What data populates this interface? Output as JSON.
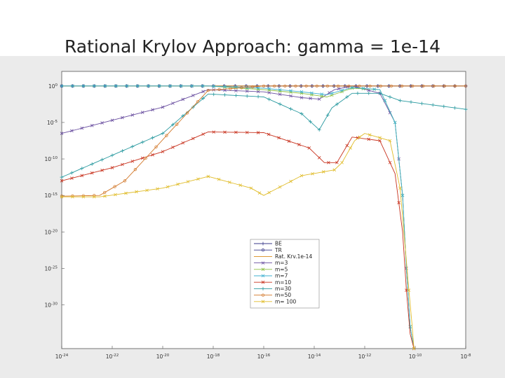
{
  "slide_title": "Rational Krylov Approach: gamma = 1e-14",
  "chart_data": {
    "type": "line",
    "title": "Rational Krylov Approach: gamma = 1e-14",
    "x_scale": "log",
    "y_scale": "log",
    "xlim": [
      1e-24,
      1e-08
    ],
    "ylim": [
      1e-36,
      100.0
    ],
    "x_ticks": [
      -24,
      -22,
      -20,
      -18,
      -16,
      -14,
      -12,
      -10,
      -8
    ],
    "x_tick_labels": [
      "10^-24",
      "10^-22",
      "10^-20",
      "10^-18",
      "10^-16",
      "10^-14",
      "10^-12",
      "10^-10",
      "10^-8"
    ],
    "y_ticks": [
      0,
      -5,
      -10,
      -15,
      -20,
      -25,
      -30
    ],
    "y_tick_labels": [
      "10^0",
      "10^-5",
      "10^-10",
      "10^-15",
      "10^-20",
      "10^-25",
      "10^-30"
    ],
    "legend_position": "center",
    "series": [
      {
        "name": "BE",
        "color": "#3a3a8a",
        "marker": "plus",
        "x": [
          -24,
          -18,
          -8
        ],
        "y": [
          0,
          0,
          0
        ]
      },
      {
        "name": "TR",
        "color": "#3a3a8a",
        "marker": "circle",
        "x": [
          -24,
          -18,
          -8
        ],
        "y": [
          0,
          0,
          0
        ]
      },
      {
        "name": "Rat. Krv.1e-14",
        "color": "#d98c1a",
        "marker": "none",
        "x": [
          -24,
          -18,
          -8
        ],
        "y": [
          0,
          0,
          0
        ]
      },
      {
        "name": "m=3",
        "color": "#6a4fa0",
        "marker": "x",
        "x": [
          -24,
          -22,
          -20,
          -18.2,
          -16,
          -14.5,
          -13.8,
          -13.2,
          -12.5,
          -11.4,
          -10.8,
          -10.5,
          -10.35,
          -10.2,
          -10.05
        ],
        "y": [
          -6.5,
          -4.7,
          -2.9,
          -0.5,
          -0.8,
          -1.6,
          -1.8,
          -0.5,
          0,
          -1,
          -5,
          -15,
          -25,
          -33,
          -36
        ]
      },
      {
        "name": "m=5",
        "color": "#8cbf40",
        "marker": "x",
        "x": [
          -24,
          -18.2,
          -16,
          -14.5,
          -13.5,
          -12.5,
          -11.4,
          -10.8,
          -10.5,
          -10.35,
          -10.2,
          -10.05
        ],
        "y": [
          0,
          0,
          -0.5,
          -1,
          -1.5,
          -0.3,
          -0.5,
          -5,
          -15,
          -25,
          -33,
          -36
        ]
      },
      {
        "name": "m=7",
        "color": "#3fb0d0",
        "marker": "x",
        "x": [
          -24,
          -18.2,
          -16,
          -14.5,
          -13.5,
          -12.5,
          -11.4,
          -10.8,
          -10.5,
          -10.35,
          -10.2,
          -10.05
        ],
        "y": [
          0,
          0,
          -0.3,
          -0.8,
          -1.2,
          -0.2,
          -0.5,
          -5,
          -15,
          -25,
          -33,
          -36
        ]
      },
      {
        "name": "m=10",
        "color": "#c8321e",
        "marker": "x",
        "x": [
          -24,
          -22,
          -20,
          -18.2,
          -16,
          -14.2,
          -13.6,
          -13.1,
          -12.5,
          -11.4,
          -10.8,
          -10.5,
          -10.35,
          -10.2,
          -10.05
        ],
        "y": [
          -13,
          -11.2,
          -9,
          -6.3,
          -6.4,
          -8.5,
          -10.5,
          -10.5,
          -7,
          -7.5,
          -12,
          -20,
          -28,
          -34,
          -36
        ]
      },
      {
        "name": "m=30",
        "color": "#2a9aa0",
        "marker": "plus",
        "x": [
          -24,
          -22,
          -20,
          -18.2,
          -16,
          -14.5,
          -13.8,
          -13.3,
          -12.5,
          -11.4,
          -10.6,
          -8
        ],
        "y": [
          -12.5,
          -9.5,
          -6.5,
          -1.1,
          -1.5,
          -3.8,
          -6,
          -3,
          -1,
          -1,
          -2,
          -3.2
        ]
      },
      {
        "name": "m=50",
        "color": "#d2782a",
        "marker": "circle",
        "x": [
          -24,
          -22.5,
          -21.5,
          -18.2,
          -16,
          -12,
          -8
        ],
        "y": [
          -15.1,
          -15,
          -13,
          -0.6,
          0,
          0,
          0
        ]
      },
      {
        "name": "m= 100",
        "color": "#e0bc2a",
        "marker": "x",
        "x": [
          -24,
          -22.5,
          -20,
          -18.2,
          -16.5,
          -16,
          -14.5,
          -13.2,
          -12.9,
          -12.4,
          -12,
          -11,
          -10.6,
          -10.4,
          -10.25,
          -10.12,
          -10.05
        ],
        "y": [
          -15.2,
          -15.2,
          -14,
          -12.4,
          -14,
          -15,
          -12.3,
          -11.5,
          -10.5,
          -7.5,
          -6.5,
          -7.5,
          -14,
          -22,
          -28,
          -33,
          -36
        ]
      }
    ]
  }
}
